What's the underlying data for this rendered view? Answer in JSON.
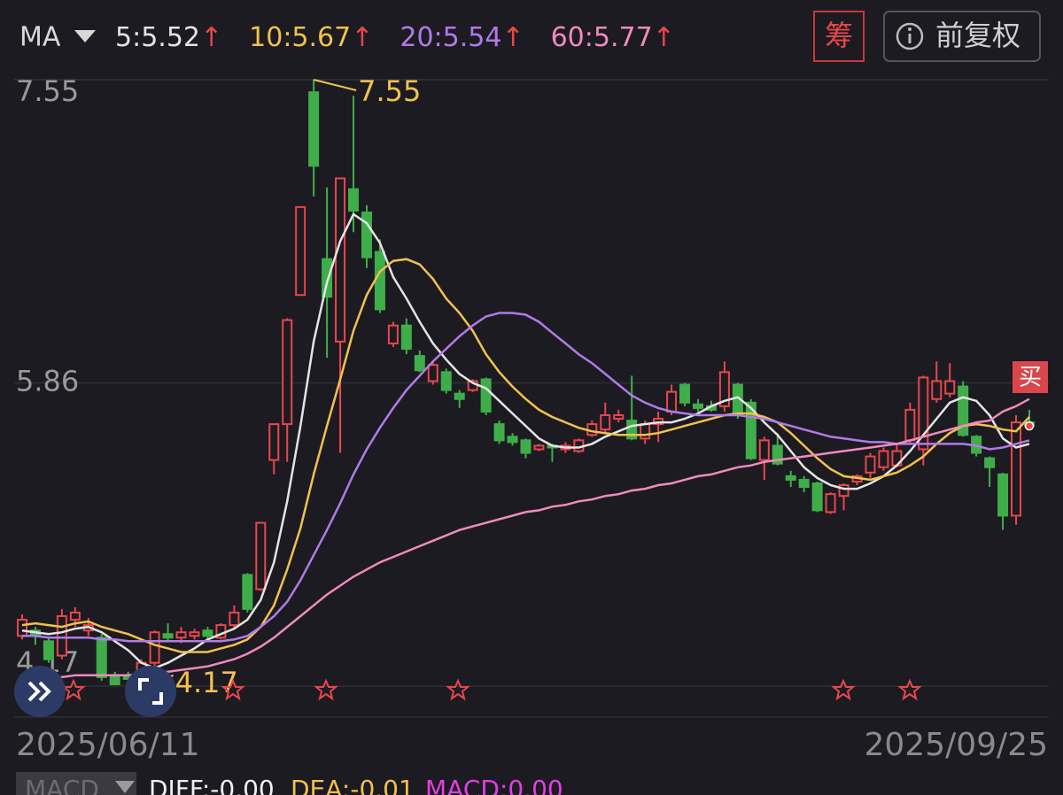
{
  "header": {
    "indicator": "MA",
    "chip_button": "筹",
    "adjust_button": "前复权"
  },
  "chart_data": {
    "type": "candlestick",
    "categories": [
      "2025/06/11",
      null,
      null,
      null,
      null,
      null,
      null,
      null,
      null,
      null,
      null,
      null,
      null,
      null,
      null,
      null,
      null,
      null,
      null,
      null,
      null,
      null,
      null,
      null,
      null,
      null,
      null,
      null,
      null,
      null,
      null,
      null,
      null,
      null,
      null,
      null,
      null,
      null,
      null,
      null,
      null,
      null,
      null,
      null,
      null,
      null,
      null,
      null,
      null,
      null,
      null,
      null,
      null,
      null,
      null,
      null,
      null,
      null,
      null,
      null,
      null,
      null,
      null,
      null,
      null,
      null,
      null,
      null,
      null,
      null,
      null,
      null,
      null,
      null,
      null,
      null,
      "2025/09/25"
    ],
    "open": [
      4.45,
      4.48,
      4.42,
      4.34,
      4.54,
      4.48,
      4.44,
      4.22,
      4.22,
      4.2,
      4.3,
      4.46,
      4.44,
      4.45,
      4.48,
      4.44,
      4.51,
      4.79,
      4.71,
      5.43,
      5.63,
      6.35,
      7.48,
      6.55,
      6.09,
      6.94,
      6.81,
      6.59,
      6.08,
      6.18,
      6.01,
      5.87,
      5.92,
      5.8,
      5.82,
      5.88,
      5.63,
      5.56,
      5.54,
      5.49,
      5.51,
      5.49,
      5.48,
      5.57,
      5.6,
      5.66,
      5.65,
      5.55,
      5.63,
      5.7,
      5.85,
      5.74,
      5.73,
      5.73,
      5.85,
      5.75,
      5.43,
      5.51,
      5.34,
      5.32,
      5.3,
      5.14,
      5.23,
      5.31,
      5.36,
      5.39,
      5.4,
      5.54,
      5.49,
      5.77,
      5.8,
      5.84,
      5.56,
      5.44,
      5.35,
      5.12,
      5.64
    ],
    "high": [
      4.57,
      4.5,
      4.44,
      4.6,
      4.61,
      4.55,
      4.46,
      4.25,
      4.25,
      4.32,
      4.48,
      4.52,
      4.5,
      4.49,
      4.5,
      4.52,
      4.62,
      4.8,
      5.08,
      5.63,
      6.22,
      6.84,
      7.55,
      6.95,
      7.0,
      7.46,
      6.85,
      6.66,
      6.2,
      6.22,
      6.04,
      5.98,
      5.94,
      5.82,
      5.88,
      5.89,
      5.65,
      5.58,
      5.55,
      5.52,
      5.52,
      5.53,
      5.55,
      5.65,
      5.75,
      5.71,
      5.9,
      5.65,
      5.7,
      5.85,
      5.86,
      5.77,
      5.76,
      5.98,
      5.86,
      5.77,
      5.56,
      5.58,
      5.37,
      5.34,
      5.31,
      5.25,
      5.3,
      5.35,
      5.47,
      5.5,
      5.52,
      5.75,
      5.9,
      5.98,
      5.97,
      5.87,
      5.57,
      5.45,
      5.36,
      5.68,
      5.71
    ],
    "low": [
      4.43,
      4.4,
      4.3,
      4.32,
      4.5,
      4.45,
      4.2,
      4.18,
      4.19,
      4.17,
      4.28,
      4.42,
      4.41,
      4.43,
      4.42,
      4.43,
      4.49,
      4.58,
      4.7,
      5.35,
      5.42,
      6.35,
      6.9,
      6.0,
      5.47,
      6.7,
      6.5,
      6.25,
      6.06,
      6.02,
      5.92,
      5.85,
      5.8,
      5.72,
      5.81,
      5.68,
      5.52,
      5.51,
      5.44,
      5.48,
      5.42,
      5.47,
      5.47,
      5.56,
      5.58,
      5.64,
      5.54,
      5.52,
      5.53,
      5.68,
      5.73,
      5.7,
      5.7,
      5.7,
      5.66,
      5.43,
      5.32,
      5.4,
      5.28,
      5.25,
      5.14,
      5.13,
      5.15,
      5.29,
      5.33,
      5.37,
      5.39,
      5.52,
      5.4,
      5.75,
      5.78,
      5.56,
      5.45,
      5.28,
      5.04,
      5.07,
      5.6
    ],
    "close": [
      4.54,
      4.45,
      4.32,
      4.56,
      4.58,
      4.51,
      4.22,
      4.18,
      4.21,
      4.3,
      4.47,
      4.44,
      4.47,
      4.47,
      4.45,
      4.51,
      4.58,
      4.6,
      5.08,
      5.63,
      6.21,
      6.84,
      7.07,
      6.34,
      7.0,
      6.82,
      6.56,
      6.27,
      6.18,
      6.05,
      5.93,
      5.96,
      5.82,
      5.77,
      5.87,
      5.7,
      5.54,
      5.53,
      5.47,
      5.51,
      5.5,
      5.51,
      5.54,
      5.63,
      5.68,
      5.68,
      5.55,
      5.63,
      5.66,
      5.81,
      5.75,
      5.72,
      5.71,
      5.92,
      5.68,
      5.44,
      5.54,
      5.41,
      5.32,
      5.28,
      5.15,
      5.24,
      5.29,
      5.34,
      5.45,
      5.48,
      5.48,
      5.71,
      5.89,
      5.87,
      5.87,
      5.57,
      5.47,
      5.39,
      5.12,
      5.64,
      5.62
    ],
    "up_color": "#e8474c",
    "down_color": "#3fae4a",
    "series": [
      {
        "name": "5:5.52",
        "color": "#e4e4e4",
        "values": [
          4.48,
          4.47,
          4.46,
          4.47,
          4.49,
          4.5,
          4.47,
          4.42,
          4.37,
          4.3,
          4.27,
          4.3,
          4.34,
          4.38,
          4.43,
          4.46,
          4.49,
          4.54,
          4.65,
          4.86,
          5.2,
          5.62,
          6.09,
          6.42,
          6.65,
          6.8,
          6.75,
          6.64,
          6.45,
          6.33,
          6.2,
          6.08,
          5.99,
          5.91,
          5.86,
          5.83,
          5.76,
          5.69,
          5.62,
          5.55,
          5.51,
          5.5,
          5.5,
          5.52,
          5.56,
          5.59,
          5.62,
          5.63,
          5.64,
          5.64,
          5.66,
          5.69,
          5.73,
          5.76,
          5.78,
          5.72,
          5.64,
          5.57,
          5.48,
          5.39,
          5.33,
          5.29,
          5.27,
          5.27,
          5.3,
          5.34,
          5.4,
          5.48,
          5.57,
          5.66,
          5.75,
          5.78,
          5.76,
          5.68,
          5.55,
          5.5,
          5.52
        ]
      },
      {
        "name": "10:5.67",
        "color": "#f2c14e",
        "values": [
          4.51,
          4.52,
          4.51,
          4.5,
          4.52,
          4.53,
          4.5,
          4.48,
          4.46,
          4.43,
          4.4,
          4.38,
          4.36,
          4.36,
          4.36,
          4.38,
          4.4,
          4.43,
          4.5,
          4.62,
          4.82,
          5.05,
          5.35,
          5.62,
          5.88,
          6.15,
          6.35,
          6.48,
          6.54,
          6.55,
          6.52,
          6.44,
          6.33,
          6.25,
          6.15,
          6.02,
          5.92,
          5.84,
          5.77,
          5.71,
          5.67,
          5.64,
          5.61,
          5.59,
          5.58,
          5.57,
          5.57,
          5.57,
          5.58,
          5.6,
          5.62,
          5.64,
          5.66,
          5.68,
          5.69,
          5.69,
          5.67,
          5.64,
          5.58,
          5.51,
          5.44,
          5.38,
          5.34,
          5.33,
          5.32,
          5.34,
          5.36,
          5.4,
          5.45,
          5.52,
          5.58,
          5.62,
          5.63,
          5.62,
          5.6,
          5.59,
          5.67
        ]
      },
      {
        "name": "20:5.54",
        "color": "#b07be8",
        "values": [
          4.45,
          4.45,
          4.44,
          4.44,
          4.44,
          4.44,
          4.43,
          4.43,
          4.42,
          4.42,
          4.42,
          4.42,
          4.42,
          4.42,
          4.42,
          4.42,
          4.43,
          4.45,
          4.5,
          4.56,
          4.64,
          4.76,
          4.9,
          5.04,
          5.19,
          5.35,
          5.49,
          5.61,
          5.72,
          5.82,
          5.9,
          5.98,
          6.05,
          6.12,
          6.18,
          6.23,
          6.25,
          6.25,
          6.24,
          6.2,
          6.14,
          6.08,
          6.02,
          5.97,
          5.91,
          5.85,
          5.79,
          5.75,
          5.72,
          5.7,
          5.69,
          5.68,
          5.68,
          5.68,
          5.68,
          5.67,
          5.66,
          5.64,
          5.62,
          5.6,
          5.58,
          5.56,
          5.55,
          5.54,
          5.53,
          5.53,
          5.52,
          5.52,
          5.52,
          5.52,
          5.52,
          5.52,
          5.51,
          5.49,
          5.5,
          5.52,
          5.54
        ]
      },
      {
        "name": "60:5.77",
        "color": "#f08ac0",
        "values": [
          4.22,
          4.22,
          4.22,
          4.22,
          4.23,
          4.23,
          4.23,
          4.23,
          4.23,
          4.24,
          4.24,
          4.25,
          4.26,
          4.27,
          4.28,
          4.3,
          4.32,
          4.35,
          4.39,
          4.44,
          4.5,
          4.56,
          4.62,
          4.68,
          4.73,
          4.78,
          4.82,
          4.86,
          4.89,
          4.92,
          4.95,
          4.98,
          5.01,
          5.04,
          5.06,
          5.08,
          5.1,
          5.12,
          5.14,
          5.15,
          5.17,
          5.18,
          5.2,
          5.21,
          5.23,
          5.24,
          5.26,
          5.27,
          5.29,
          5.3,
          5.32,
          5.34,
          5.35,
          5.37,
          5.39,
          5.4,
          5.42,
          5.43,
          5.44,
          5.45,
          5.46,
          5.47,
          5.48,
          5.49,
          5.5,
          5.51,
          5.52,
          5.54,
          5.56,
          5.58,
          5.6,
          5.62,
          5.64,
          5.65,
          5.7,
          5.73,
          5.77
        ]
      }
    ],
    "trend_arrow": "↑",
    "max": 7.55,
    "min": 4.17,
    "buy_marker": "买",
    "ylim": [
      4.17,
      7.55
    ],
    "yticks": [
      4.17,
      5.86,
      7.55
    ],
    "grid": true
  },
  "footer": {
    "indicator": "MACD",
    "diff": "DIFF:-0.00",
    "dea": "DEA:-0.01",
    "macd": "MACD:0.00"
  }
}
